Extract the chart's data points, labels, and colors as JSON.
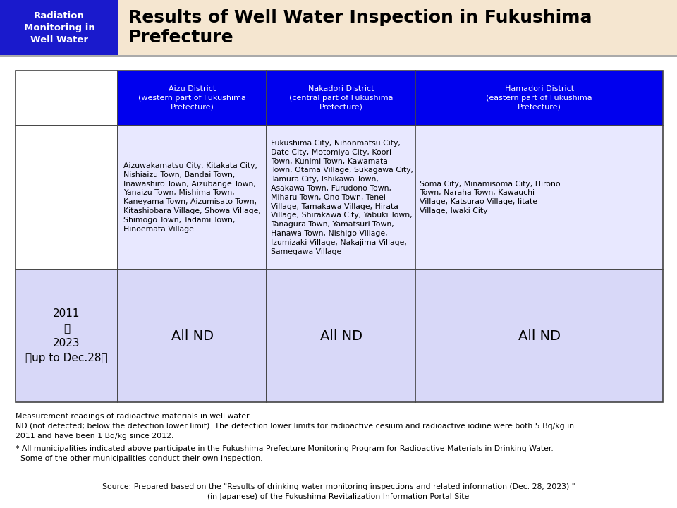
{
  "header_bg": "#f5e6d0",
  "header_box_bg": "#1a1acc",
  "header_box_text": "Radiation\nMonitoring in\nWell Water",
  "header_box_text_color": "#ffffff",
  "header_title": "Results of Well Water Inspection in Fukushima\nPrefecture",
  "header_title_color": "#000000",
  "table_header_bg": "#0000ee",
  "table_header_text_color": "#ffffff",
  "table_body_bg": "#e8e8ff",
  "table_nd_bg": "#d8d8f8",
  "table_border_color": "#444444",
  "col_headers": [
    "Aizu District\n(western part of Fukushima\nPrefecture)",
    "Nakadori District\n(central part of Fukushima\nPrefecture)",
    "Hamadori District\n(eastern part of Fukushima\nPrefecture)"
  ],
  "year_label": "2011\n〜\n2023\n（up to Dec.28）",
  "aizu_text": "Aizuwakamatsu City, Kitakata City,\nNishiaizu Town, Bandai Town,\nInawashiro Town, Aizubange Town,\nYanaizu Town, Mishima Town,\nKaneyama Town, Aizumisato Town,\nKitashiobara Village, Showa Village,\nShimogo Town, Tadami Town,\nHinoemata Village",
  "nakadori_text": "Fukushima City, Nihonmatsu City,\nDate City, Motomiya City, Koori\nTown, Kunimi Town, Kawamata\nTown, Otama Village, Sukagawa City,\nTamura City, Ishikawa Town,\nAsakawa Town, Furudono Town,\nMiharu Town, Ono Town, Tenei\nVillage, Tamakawa Village, Hirata\nVillage, Shirakawa City, Yabuki Town,\nTanagura Town, Yamatsuri Town,\nHanawa Town, Nishigo Village,\nIzumizaki Village, Nakajima Village,\nSamegawa Village",
  "hamadori_text": "Soma City, Minamisoma City, Hirono\nTown, Naraha Town, Kawauchi\nVillage, Katsurao Village, Iitate\nVillage, Iwaki City",
  "nd_text": "All ND",
  "note1": "Measurement readings of radioactive materials in well water",
  "note2": "ND (not detected; below the detection lower limit): The detection lower limits for radioactive cesium and radioactive iodine were both 5 Bq/kg in",
  "note2b": "2011 and have been 1 Bq/kg since 2012.",
  "note3": "* All municipalities indicated above participate in the Fukushima Prefecture Monitoring Program for Radioactive Materials in Drinking Water.",
  "note3b": "  Some of the other municipalities conduct their own inspection.",
  "source1": "Source: Prepared based on the \"Results of drinking water monitoring inspections and related information (Dec. 28, 2023) \"",
  "source2": "(in Japanese) of the Fukushima Revitalization Information Portal Site",
  "bg_color": "#ffffff"
}
